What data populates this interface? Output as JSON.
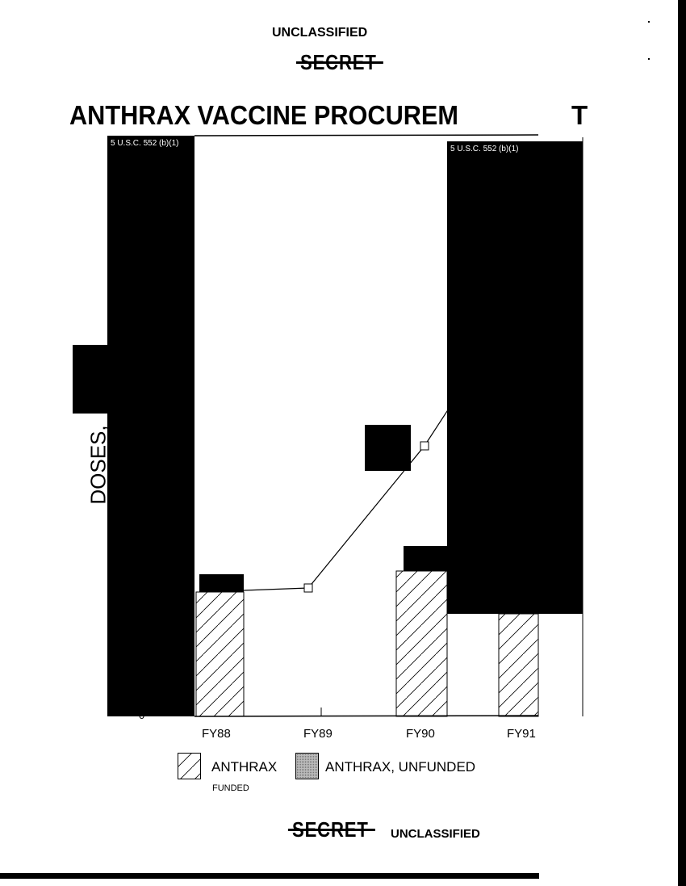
{
  "header": {
    "top_marking": "UNCLASSIFIED",
    "struck_marking": "SECRET"
  },
  "footer": {
    "struck_marking": "SECRET",
    "bottom_marking": "UNCLASSIFIED"
  },
  "chart_data": {
    "type": "bar",
    "title_left": "ANTHRAX VACCINE PROCUREM",
    "title_right": "T",
    "ylabel": "DOSES,",
    "categories": [
      "FY88",
      "FY89",
      "FY90",
      "FY91"
    ],
    "y_tick_visible": "0",
    "values": null,
    "legend": [
      {
        "label": "ANTHRAX",
        "sublabel": "FUNDED",
        "pattern": "hatched"
      },
      {
        "label": "ANTHRAX, UNFUNDED",
        "pattern": "grey-stipple"
      }
    ],
    "legend_placement": "bottom",
    "has_line_series": true,
    "redactions": [
      "5 U.S.C. 552 (b)(1)",
      "5 U.S.C. 552 (b)(1)"
    ],
    "colors": {
      "redaction": "#000000",
      "unfunded": "#a8a8a8"
    }
  }
}
